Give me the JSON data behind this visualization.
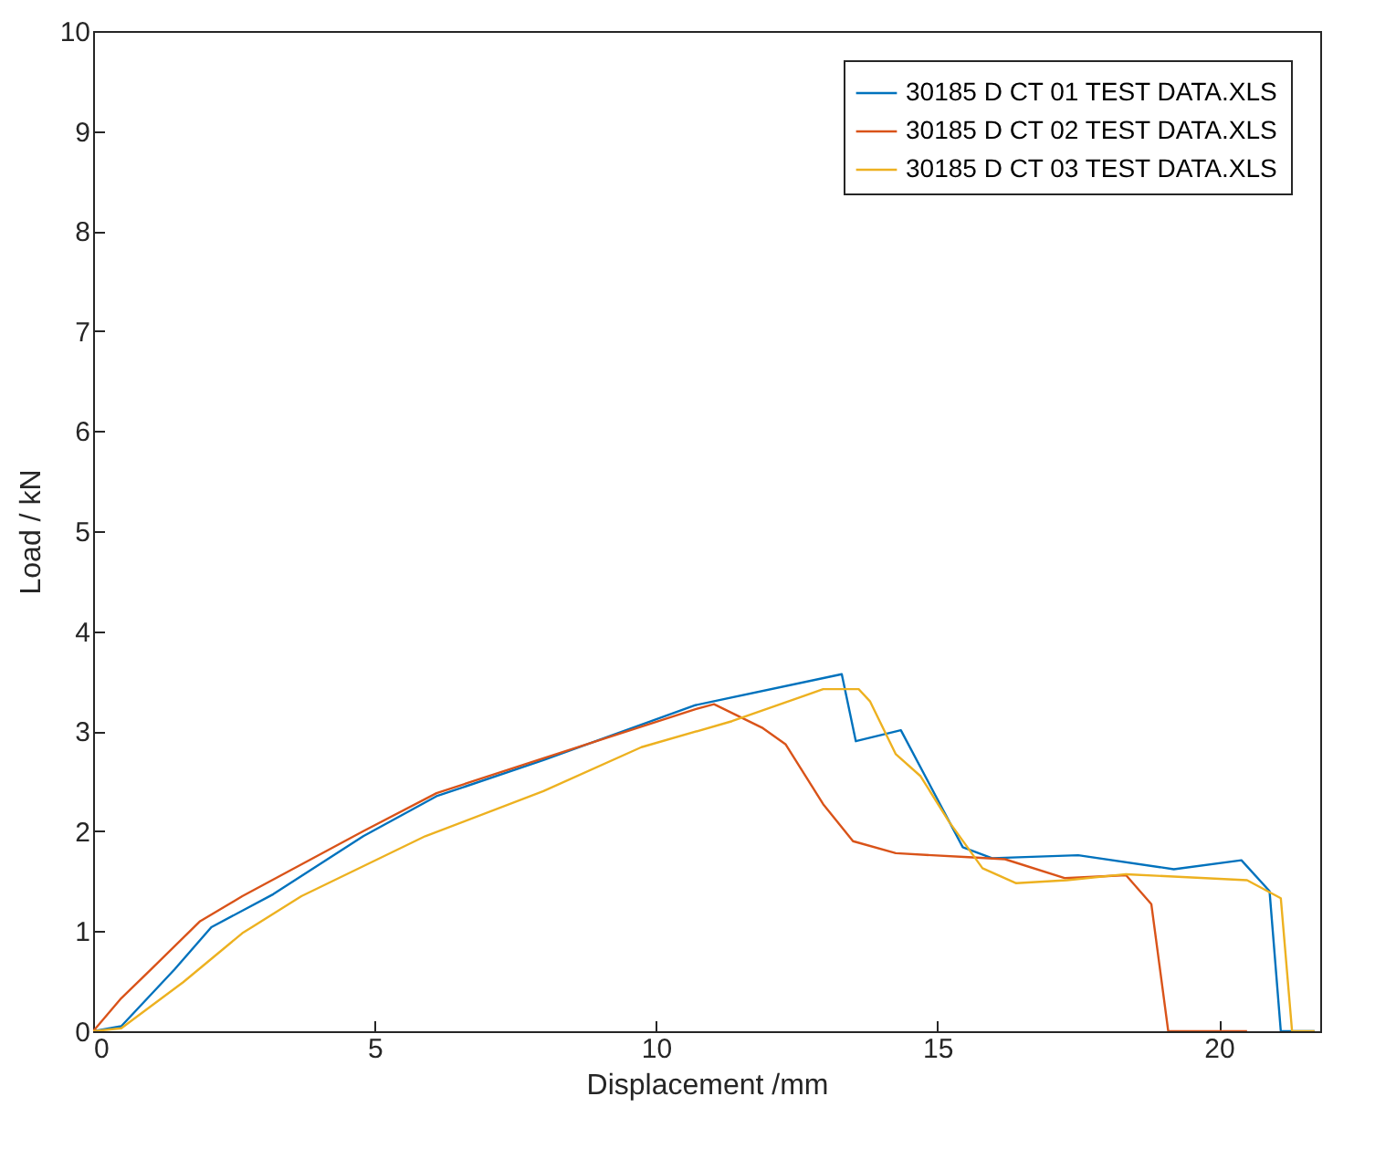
{
  "chart_data": {
    "type": "line",
    "xlabel": "Displacement /mm",
    "ylabel": "Load / kN",
    "xlim": [
      0,
      21.8
    ],
    "ylim": [
      0,
      10
    ],
    "xticks": [
      0,
      5,
      10,
      15,
      20
    ],
    "yticks": [
      0,
      1,
      2,
      3,
      4,
      5,
      6,
      7,
      8,
      9,
      10
    ],
    "grid": false,
    "legend": "top right",
    "series": [
      {
        "name": "30185 D CT 01 TEST DATA.XLS",
        "color": "#0072bd",
        "x": [
          0,
          0.5,
          1.45,
          2.1,
          3.2,
          4.8,
          6.1,
          8.0,
          10.7,
          13.3,
          13.55,
          14.35,
          15.45,
          15.97,
          17.5,
          19.2,
          20.4,
          20.9,
          21.1,
          21.7
        ],
        "values": [
          0,
          0.05,
          0.62,
          1.04,
          1.37,
          1.95,
          2.35,
          2.71,
          3.26,
          3.57,
          2.9,
          3.01,
          1.84,
          1.73,
          1.76,
          1.62,
          1.71,
          1.4,
          0,
          0
        ]
      },
      {
        "name": "30185 D CT 02 TEST DATA.XLS",
        "color": "#d95319",
        "x": [
          0,
          0.5,
          1.03,
          1.9,
          2.65,
          4.8,
          6.1,
          8.0,
          10.7,
          11.03,
          11.9,
          12.3,
          12.97,
          13.5,
          14.26,
          15.55,
          16.2,
          17.27,
          18.35,
          18.8,
          19.1,
          20.5
        ],
        "values": [
          0,
          0.33,
          0.62,
          1.1,
          1.35,
          2.0,
          2.38,
          2.73,
          3.22,
          3.27,
          3.03,
          2.87,
          2.27,
          1.9,
          1.78,
          1.74,
          1.72,
          1.53,
          1.56,
          1.27,
          0,
          0
        ]
      },
      {
        "name": "30185 D CT 03 TEST DATA.XLS",
        "color": "#edb120",
        "x": [
          0,
          0.5,
          1.6,
          2.65,
          3.7,
          5.9,
          8.0,
          9.74,
          11.35,
          12.97,
          13.6,
          13.8,
          14.26,
          14.7,
          15.2,
          15.8,
          16.4,
          17.3,
          18.35,
          20.5,
          21.1,
          21.3,
          21.7
        ],
        "values": [
          0,
          0.03,
          0.49,
          0.98,
          1.35,
          1.95,
          2.4,
          2.84,
          3.1,
          3.42,
          3.42,
          3.3,
          2.77,
          2.55,
          2.1,
          1.63,
          1.48,
          1.51,
          1.57,
          1.51,
          1.33,
          0,
          0
        ]
      }
    ]
  }
}
